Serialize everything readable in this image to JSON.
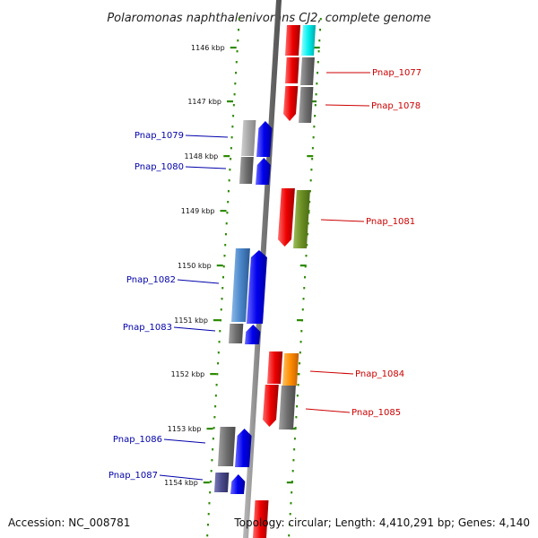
{
  "title": "Polaromonas naphthalenivorans CJ2, complete genome",
  "accession": "Accession: NC_008781",
  "summary": "Topology: circular; Length: 4,410,291 bp; Genes: 4,140",
  "ruler": [
    "1146 kbp",
    "1147 kbp",
    "1148 kbp",
    "1149 kbp",
    "1150 kbp",
    "1151 kbp",
    "1152 kbp",
    "1153 kbp",
    "1154 kbp"
  ],
  "colors": {
    "backbone": "#808080",
    "ruler_dots": "#2e8b00",
    "left_label": "#0000aa",
    "right_label": "#cc0000",
    "blue": "#0000ee",
    "red": "#ee0000",
    "gray": "#707070",
    "lightgray": "#a8a8a8",
    "cyan": "#00eeee",
    "olive": "#6b8e23",
    "steelblue": "#4a86c8",
    "orange": "#ff8c00",
    "slate": "#4a4a8a"
  },
  "genes_left": [
    {
      "label": "Pnap_1079"
    },
    {
      "label": "Pnap_1080"
    },
    {
      "label": "Pnap_1082"
    },
    {
      "label": "Pnap_1083"
    },
    {
      "label": "Pnap_1086"
    },
    {
      "label": "Pnap_1087"
    }
  ],
  "genes_right": [
    {
      "label": "Pnap_1077"
    },
    {
      "label": "Pnap_1078"
    },
    {
      "label": "Pnap_1081"
    },
    {
      "label": "Pnap_1084"
    },
    {
      "label": "Pnap_1085"
    }
  ]
}
